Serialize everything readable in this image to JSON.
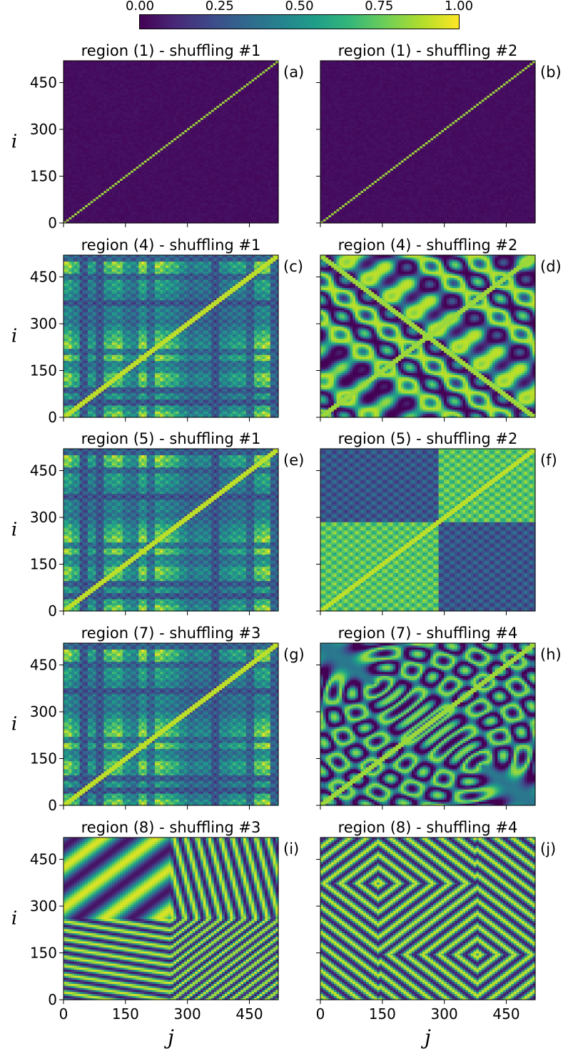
{
  "colorbar": {
    "ticks": [
      "0.00",
      "0.25",
      "0.50",
      "0.75",
      "1.00"
    ],
    "range": [
      0,
      1
    ],
    "colormap": "viridis",
    "colors": [
      "#440154",
      "#482878",
      "#3e4989",
      "#31688e",
      "#26828e",
      "#1f9e89",
      "#35b779",
      "#6ece58",
      "#b5de2b",
      "#fde725"
    ]
  },
  "chart_data": [
    {
      "type": "heatmap",
      "title": "region (1) - shuffling #1",
      "panel_label": "(a)",
      "pattern": "diagonal",
      "xlabel": "",
      "ylabel": "i",
      "xlim": [
        0,
        520
      ],
      "ylim": [
        0,
        520
      ],
      "ticks": [
        0,
        150,
        300,
        450
      ]
    },
    {
      "type": "heatmap",
      "title": "region (1) - shuffling #2",
      "panel_label": "(b)",
      "pattern": "diagonal",
      "xlabel": "",
      "ylabel": "",
      "xlim": [
        0,
        520
      ],
      "ylim": [
        0,
        520
      ],
      "ticks": [
        0,
        150,
        300,
        450
      ]
    },
    {
      "type": "heatmap",
      "title": "region (4) - shuffling #1",
      "panel_label": "(c)",
      "pattern": "blocky",
      "xlabel": "",
      "ylabel": "i",
      "xlim": [
        0,
        520
      ],
      "ylim": [
        0,
        520
      ],
      "ticks": [
        0,
        150,
        300,
        450
      ]
    },
    {
      "type": "heatmap",
      "title": "region (4) - shuffling #2",
      "panel_label": "(d)",
      "pattern": "xshape",
      "xlabel": "",
      "ylabel": "",
      "xlim": [
        0,
        520
      ],
      "ylim": [
        0,
        520
      ],
      "ticks": [
        0,
        150,
        300,
        450
      ]
    },
    {
      "type": "heatmap",
      "title": "region (5) - shuffling #1",
      "panel_label": "(e)",
      "pattern": "blocky",
      "xlabel": "",
      "ylabel": "i",
      "xlim": [
        0,
        520
      ],
      "ylim": [
        0,
        520
      ],
      "ticks": [
        0,
        150,
        300,
        450
      ]
    },
    {
      "type": "heatmap",
      "title": "region (5) - shuffling #2",
      "panel_label": "(f)",
      "pattern": "blocks2",
      "xlabel": "",
      "ylabel": "",
      "xlim": [
        0,
        520
      ],
      "ylim": [
        0,
        520
      ],
      "ticks": [
        0,
        150,
        300,
        450
      ]
    },
    {
      "type": "heatmap",
      "title": "region (7) - shuffling #3",
      "panel_label": "(g)",
      "pattern": "blocky",
      "xlabel": "",
      "ylabel": "i",
      "xlim": [
        0,
        520
      ],
      "ylim": [
        0,
        520
      ],
      "ticks": [
        0,
        150,
        300,
        450
      ]
    },
    {
      "type": "heatmap",
      "title": "region (7) - shuffling #4",
      "panel_label": "(h)",
      "pattern": "rings",
      "xlabel": "",
      "ylabel": "",
      "xlim": [
        0,
        520
      ],
      "ylim": [
        0,
        520
      ],
      "ticks": [
        0,
        150,
        300,
        450
      ]
    },
    {
      "type": "heatmap",
      "title": "region (8) - shuffling #3",
      "panel_label": "(i)",
      "pattern": "stripesX",
      "xlabel": "j",
      "ylabel": "i",
      "xlim": [
        0,
        520
      ],
      "ylim": [
        0,
        520
      ],
      "ticks": [
        0,
        150,
        300,
        450
      ]
    },
    {
      "type": "heatmap",
      "title": "region (8) - shuffling #4",
      "panel_label": "(j)",
      "pattern": "diamonds",
      "xlabel": "j",
      "ylabel": "",
      "xlim": [
        0,
        520
      ],
      "ylim": [
        0,
        520
      ],
      "ticks": [
        0,
        150,
        300,
        450
      ]
    }
  ]
}
